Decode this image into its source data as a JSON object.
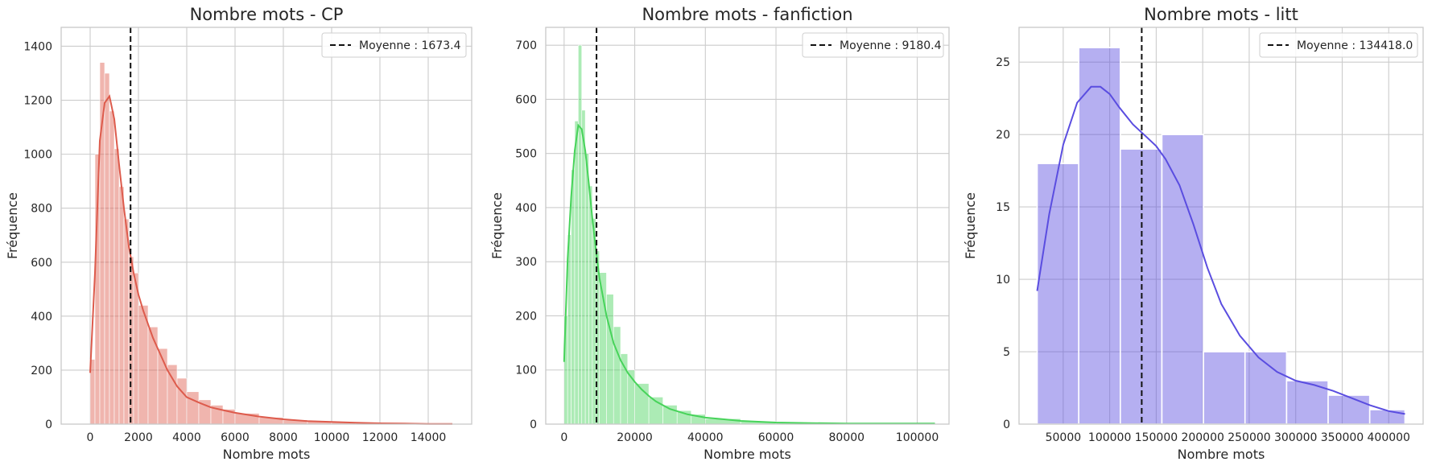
{
  "colors": {
    "CP": "#dd5b4c",
    "fanfiction": "#47d35a",
    "litt": "#5a4de0",
    "grid": "#cccccc",
    "mean_line": "#111111",
    "frame": "#c8c8c8"
  },
  "chart_data": [
    {
      "type": "bar",
      "title": "Nombre mots - CP",
      "xlabel": "Nombre mots",
      "ylabel": "Fréquence",
      "xlim": [
        -1200,
        15800
      ],
      "ylim": [
        0,
        1470
      ],
      "xticks": [
        0,
        2000,
        4000,
        6000,
        8000,
        10000,
        12000,
        14000
      ],
      "yticks": [
        0,
        200,
        400,
        600,
        800,
        1000,
        1200,
        1400
      ],
      "grid": true,
      "legend_position": "top-right",
      "legend": [
        "Moyenne : 1673.4"
      ],
      "mean": 1673.4,
      "color": "#dd5b4c",
      "bar_edges": [
        0,
        200,
        400,
        600,
        800,
        1000,
        1200,
        1400,
        1600,
        1800,
        2000,
        2400,
        2800,
        3200,
        3600,
        4000,
        4500,
        5000,
        5500,
        6000,
        7000,
        8000,
        9000,
        10000,
        11000,
        12000,
        13000,
        14000,
        15000
      ],
      "bar_values": [
        240,
        1000,
        1340,
        1300,
        1160,
        1020,
        880,
        760,
        620,
        560,
        440,
        360,
        280,
        220,
        170,
        120,
        90,
        70,
        55,
        40,
        25,
        15,
        10,
        8,
        5,
        3,
        2,
        1
      ],
      "kde": {
        "x": [
          0,
          200,
          400,
          600,
          800,
          1000,
          1200,
          1400,
          1600,
          1800,
          2000,
          2200,
          2400,
          2600,
          2800,
          3000,
          3200,
          3400,
          3600,
          3800,
          4000,
          4500,
          5000,
          5500,
          6000,
          7000,
          8000,
          9000,
          10000,
          11000,
          12000,
          13000,
          14000,
          15000
        ],
        "y": [
          190,
          560,
          1050,
          1190,
          1215,
          1130,
          960,
          800,
          660,
          560,
          480,
          420,
          370,
          320,
          280,
          240,
          200,
          170,
          140,
          120,
          100,
          80,
          62,
          52,
          42,
          28,
          18,
          11,
          8,
          5,
          3,
          2,
          1,
          1
        ]
      }
    },
    {
      "type": "bar",
      "title": "Nombre mots - fanfiction",
      "xlabel": "Nombre mots",
      "ylabel": "Fréquence",
      "xlim": [
        -5200,
        109000
      ],
      "ylim": [
        0,
        733
      ],
      "xticks": [
        0,
        20000,
        40000,
        60000,
        80000,
        100000
      ],
      "yticks": [
        0,
        100,
        200,
        300,
        400,
        500,
        600,
        700
      ],
      "grid": true,
      "legend_position": "top-right",
      "legend": [
        "Moyenne : 9180.4"
      ],
      "mean": 9180.4,
      "color": "#47d35a",
      "bar_edges": [
        0,
        1000,
        2000,
        3000,
        4000,
        5000,
        6000,
        7000,
        8000,
        9000,
        10000,
        12000,
        14000,
        16000,
        18000,
        20000,
        24000,
        28000,
        32000,
        36000,
        40000,
        50000,
        60000,
        70000,
        80000,
        90000,
        105000
      ],
      "bar_values": [
        200,
        350,
        470,
        560,
        700,
        580,
        500,
        440,
        380,
        320,
        280,
        240,
        180,
        130,
        100,
        75,
        50,
        35,
        25,
        18,
        10,
        5,
        3,
        2,
        1,
        1
      ],
      "kde": {
        "x": [
          0,
          1000,
          2000,
          3000,
          4000,
          5000,
          6000,
          7000,
          8000,
          9000,
          10000,
          12000,
          14000,
          16000,
          18000,
          20000,
          22000,
          24000,
          26000,
          28000,
          30000,
          35000,
          40000,
          45000,
          50000,
          60000,
          70000,
          80000,
          90000,
          100000,
          105000
        ],
        "y": [
          115,
          305,
          420,
          505,
          552,
          545,
          505,
          445,
          380,
          322,
          270,
          200,
          150,
          118,
          95,
          78,
          64,
          52,
          42,
          35,
          28,
          18,
          12,
          9,
          6,
          3,
          2,
          1,
          1,
          1,
          1
        ]
      }
    },
    {
      "type": "bar",
      "title": "Nombre mots - litt",
      "xlabel": "Nombre mots",
      "ylabel": "Fréquence",
      "xlim": [
        2500,
        437000
      ],
      "ylim": [
        0,
        27.4
      ],
      "xticks": [
        50000,
        100000,
        150000,
        200000,
        250000,
        300000,
        350000,
        400000
      ],
      "yticks": [
        0,
        5,
        10,
        15,
        20,
        25
      ],
      "grid": true,
      "legend_position": "top-right",
      "legend": [
        "Moyenne : 134418.0"
      ],
      "mean": 134418.0,
      "color": "#5a4de0",
      "bar_edges": [
        22000,
        66700,
        111400,
        156100,
        200800,
        245500,
        290200,
        334900,
        379600,
        417500
      ],
      "bar_values": [
        18,
        26,
        19,
        20,
        5,
        5,
        3,
        2,
        1
      ],
      "kde": {
        "x": [
          22000,
          35000,
          50000,
          65000,
          80000,
          90000,
          100000,
          110000,
          125000,
          140000,
          150000,
          160000,
          175000,
          190000,
          205000,
          220000,
          240000,
          260000,
          280000,
          300000,
          320000,
          340000,
          360000,
          380000,
          400000,
          417500
        ],
        "y": [
          9.2,
          14.5,
          19.3,
          22.2,
          23.3,
          23.3,
          22.8,
          21.9,
          20.7,
          19.8,
          19.2,
          18.3,
          16.5,
          13.8,
          10.8,
          8.3,
          6.1,
          4.6,
          3.6,
          3.0,
          2.7,
          2.3,
          1.8,
          1.3,
          0.9,
          0.7
        ]
      }
    }
  ]
}
